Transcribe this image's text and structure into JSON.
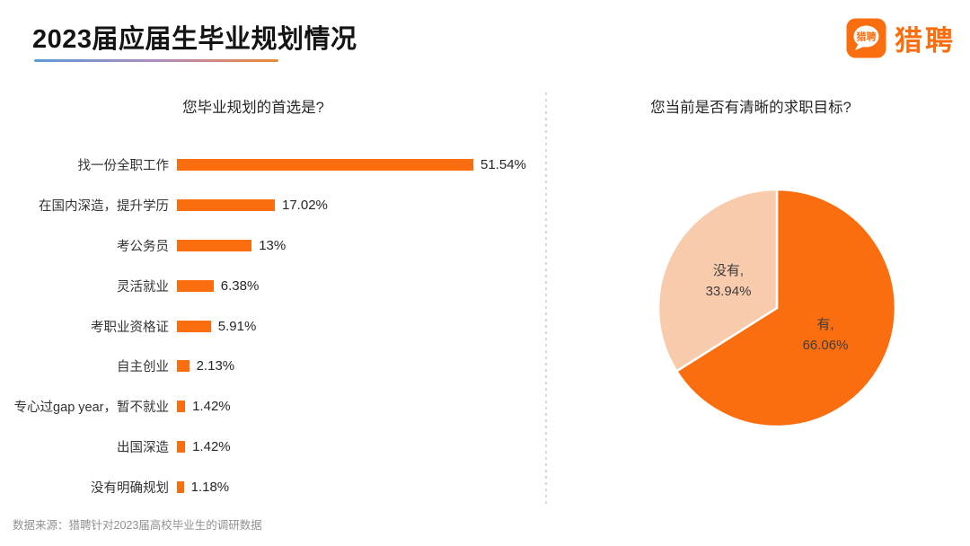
{
  "page": {
    "title": "2023届应届生毕业规划情况",
    "footer": "数据来源：猎聘针对2023届高校毕业生的调研数据"
  },
  "logo": {
    "icon_text": "猎聘",
    "brand_text": "猎聘"
  },
  "colors": {
    "accent_orange": "#FA6E0F",
    "peach": "#F8CBAD",
    "underline_gradient_start": "#5B9BD5",
    "underline_gradient_end": "#ED8936",
    "divider_gray": "#D6D6D6"
  },
  "chart_data": [
    {
      "type": "bar",
      "orientation": "horizontal",
      "title": "您毕业规划的首选是?",
      "categories": [
        "找一份全职工作",
        "在国内深造，提升学历",
        "考公务员",
        "灵活就业",
        "考职业资格证",
        "自主创业",
        "专心过gap year，暂不就业",
        "出国深造",
        "没有明确规划"
      ],
      "values": [
        51.54,
        17.02,
        13,
        6.38,
        5.91,
        2.13,
        1.42,
        1.42,
        1.18
      ],
      "labels": [
        "51.54%",
        "17.02%",
        "13%",
        "6.38%",
        "5.91%",
        "2.13%",
        "1.42%",
        "1.42%",
        "1.18%"
      ],
      "bar_color": "#FA6E0F",
      "xlim": [
        0,
        55
      ],
      "grid": false,
      "legend": "none"
    },
    {
      "type": "pie",
      "title": "您当前是否有清晰的求职目标?",
      "start_angle_deg": 0,
      "direction": "clockwise",
      "slices": [
        {
          "name": "有",
          "value": 66.06,
          "label_line1": "有,",
          "label_line2": "66.06%",
          "color": "#FA6E0F"
        },
        {
          "name": "没有",
          "value": 33.94,
          "label_line1": "没有,",
          "label_line2": "33.94%",
          "color": "#F8CBAD"
        }
      ],
      "legend": "none"
    }
  ]
}
